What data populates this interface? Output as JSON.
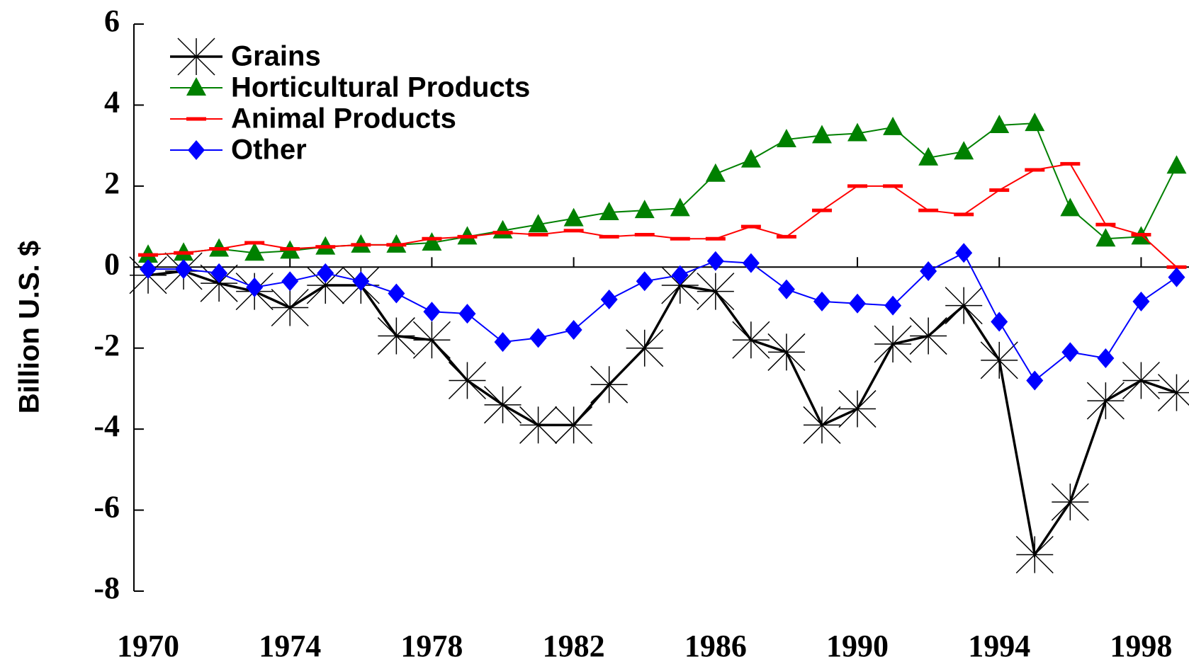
{
  "chart_data": {
    "type": "line",
    "y_label": "Billion U.S. $",
    "x": [
      1970,
      1971,
      1972,
      1973,
      1974,
      1975,
      1976,
      1977,
      1978,
      1979,
      1980,
      1981,
      1982,
      1983,
      1984,
      1985,
      1986,
      1987,
      1988,
      1989,
      1990,
      1991,
      1992,
      1993,
      1994,
      1995,
      1996,
      1997,
      1998,
      1999
    ],
    "series": [
      {
        "name": "Grains",
        "color": "#000000",
        "marker": "asterisk",
        "values": [
          -0.2,
          -0.1,
          -0.4,
          -0.6,
          -1.0,
          -0.45,
          -0.45,
          -1.7,
          -1.8,
          -2.8,
          -3.4,
          -3.9,
          -3.9,
          -2.9,
          -2.0,
          -0.45,
          -0.6,
          -1.8,
          -2.1,
          -3.9,
          -3.5,
          -1.9,
          -1.7,
          -0.95,
          -2.3,
          -7.1,
          -5.8,
          -3.3,
          -2.8,
          -3.1
        ]
      },
      {
        "name": "Horticultural Products",
        "color": "#008000",
        "marker": "triangle",
        "values": [
          0.3,
          0.35,
          0.45,
          0.35,
          0.4,
          0.5,
          0.55,
          0.55,
          0.6,
          0.75,
          0.9,
          1.05,
          1.2,
          1.35,
          1.4,
          1.45,
          2.3,
          2.65,
          3.15,
          3.25,
          3.3,
          3.45,
          2.7,
          2.85,
          3.5,
          3.55,
          1.45,
          0.7,
          0.75,
          2.5
        ]
      },
      {
        "name": "Animal Products",
        "color": "#ff0000",
        "marker": "dash",
        "values": [
          0.3,
          0.35,
          0.45,
          0.6,
          0.45,
          0.5,
          0.55,
          0.55,
          0.7,
          0.75,
          0.85,
          0.8,
          0.9,
          0.75,
          0.8,
          0.7,
          0.7,
          1.0,
          0.75,
          1.4,
          2.0,
          2.0,
          1.4,
          1.3,
          1.9,
          2.4,
          2.55,
          1.05,
          0.8,
          0.0
        ]
      },
      {
        "name": "Other",
        "color": "#0000ff",
        "marker": "diamond",
        "values": [
          -0.05,
          -0.05,
          -0.15,
          -0.5,
          -0.35,
          -0.15,
          -0.35,
          -0.65,
          -1.1,
          -1.15,
          -1.85,
          -1.75,
          -1.55,
          -0.8,
          -0.35,
          -0.2,
          0.15,
          0.1,
          -0.55,
          -0.85,
          -0.9,
          -0.95,
          -0.1,
          0.35,
          -1.35,
          -2.8,
          -2.1,
          -2.25,
          -0.85,
          -0.25
        ]
      }
    ],
    "xlim": [
      1969.6,
      1999.35
    ],
    "xticks": [
      1970,
      1974,
      1978,
      1982,
      1986,
      1990,
      1994,
      1998
    ],
    "ylim": [
      -8,
      6
    ],
    "yticks": [
      -8,
      -6,
      -4,
      -2,
      0,
      2,
      4,
      6
    ],
    "legend": "upper-left"
  }
}
